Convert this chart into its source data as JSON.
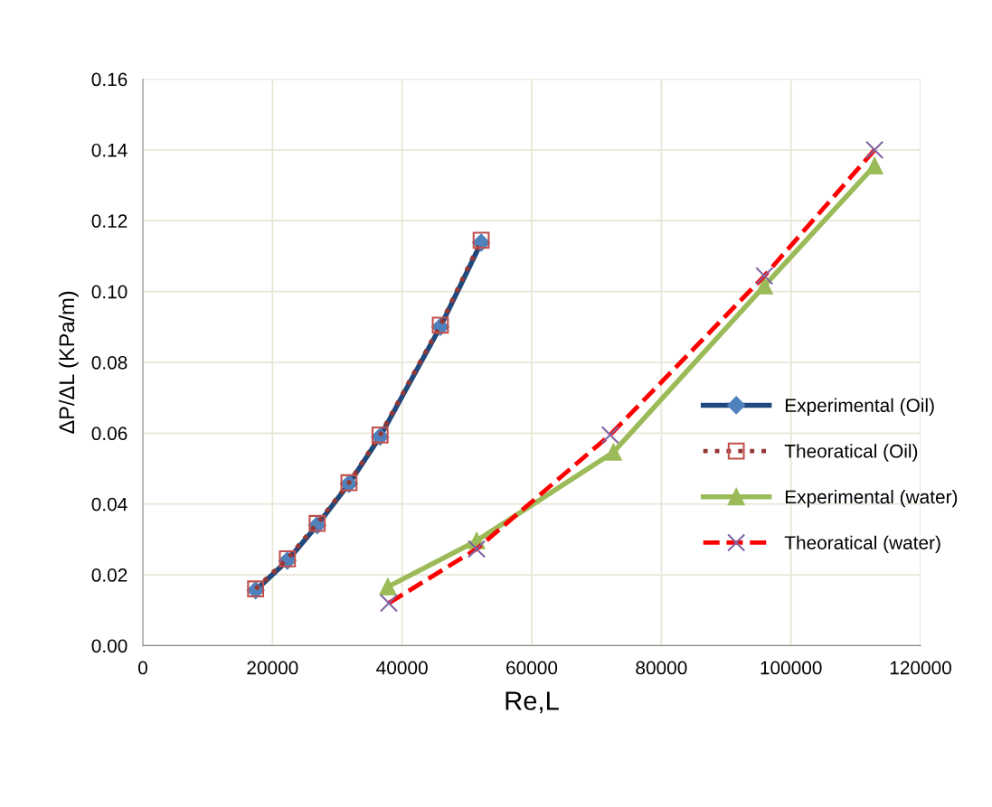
{
  "chart_data": {
    "type": "line",
    "xlabel": "Re,L",
    "ylabel": "ΔP/ΔL (KPa/m)",
    "xlim": [
      0,
      120000
    ],
    "xticks": [
      0,
      20000,
      40000,
      60000,
      80000,
      100000,
      120000
    ],
    "ylim": [
      0,
      0.16
    ],
    "yticks": [
      {
        "value": 0,
        "label": "0.00"
      },
      {
        "value": 0.02,
        "label": "0.02"
      },
      {
        "value": 0.04,
        "label": "0.04"
      },
      {
        "value": 0.06,
        "label": "0.06"
      },
      {
        "value": 0.08,
        "label": "0.08"
      },
      {
        "value": 0.1,
        "label": "0.10"
      },
      {
        "value": 0.12,
        "label": "0.12"
      },
      {
        "value": 0.14,
        "label": "0.14"
      },
      {
        "value": 0.16,
        "label": "0.16"
      }
    ],
    "grid": true,
    "legend": "right",
    "series": [
      {
        "name": "Experimental (Oil)",
        "color": "#1f497d",
        "marker": "diamond",
        "line_style": "solid",
        "x": [
          17400,
          22300,
          26900,
          31800,
          36600,
          45900,
          52200
        ],
        "values": [
          0.0156,
          0.024,
          0.034,
          0.0457,
          0.059,
          0.09,
          0.1138
        ]
      },
      {
        "name": "Theoratical (Oil)",
        "color": "#953735",
        "marker": "square",
        "line_style": "dotted",
        "x": [
          17400,
          22300,
          26900,
          31800,
          36600,
          45900,
          52200
        ],
        "values": [
          0.016,
          0.0245,
          0.0345,
          0.046,
          0.0595,
          0.0905,
          0.1145
        ]
      },
      {
        "name": "Experimental (water)",
        "color": "#9bbb59",
        "marker": "triangle",
        "line_style": "solid",
        "x": [
          37800,
          51500,
          72600,
          95900,
          112900
        ],
        "values": [
          0.0166,
          0.0296,
          0.0546,
          0.1016,
          0.1355
        ]
      },
      {
        "name": "Theoratical (water)",
        "color": "#ff0000",
        "marker": "cross",
        "line_style": "dashed",
        "x": [
          37950,
          51500,
          72100,
          95900,
          112900
        ],
        "values": [
          0.012,
          0.0273,
          0.0595,
          0.1044,
          0.14
        ]
      }
    ]
  }
}
